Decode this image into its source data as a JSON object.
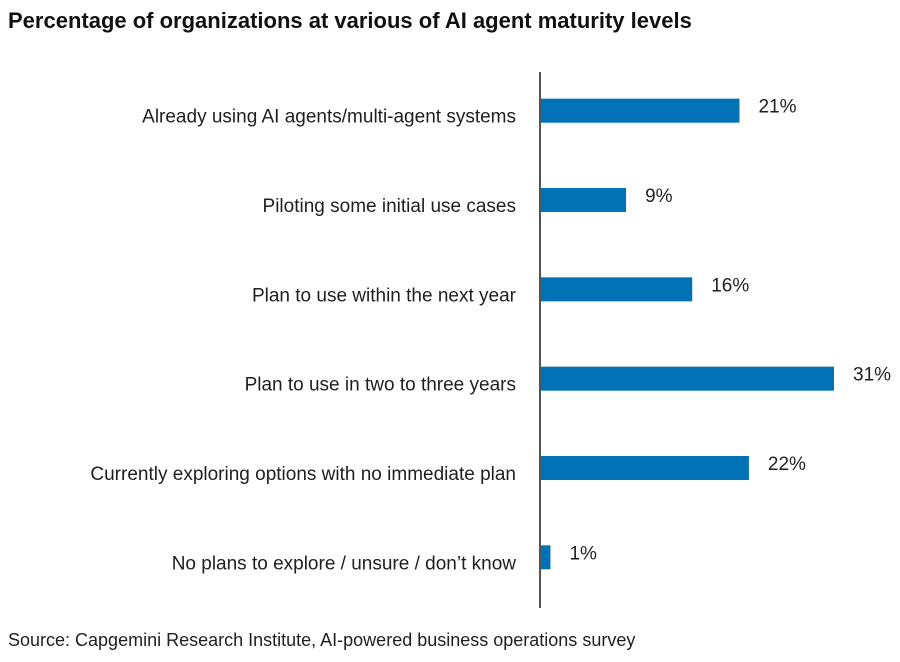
{
  "chart_data": {
    "type": "bar",
    "orientation": "horizontal",
    "title": "Percentage of organizations at various of AI agent maturity levels",
    "categories": [
      "Already using AI agents/multi-agent systems",
      "Piloting some initial use cases",
      "Plan to use within the next year",
      "Plan to use in two to three years",
      "Currently exploring options with no immediate plan",
      "No plans to explore / unsure / don’t know"
    ],
    "values": [
      21,
      9,
      16,
      31,
      22,
      1
    ],
    "value_labels": [
      "21%",
      "9%",
      "16%",
      "31%",
      "22%",
      "1%"
    ],
    "unit": "%",
    "xlim": [
      0,
      31
    ],
    "xlabel": "",
    "ylabel": "",
    "grid": false,
    "legend": "none",
    "bar_color": "#0072b5",
    "source": "Source: Capgemini Research Institute, AI-powered business operations survey"
  }
}
